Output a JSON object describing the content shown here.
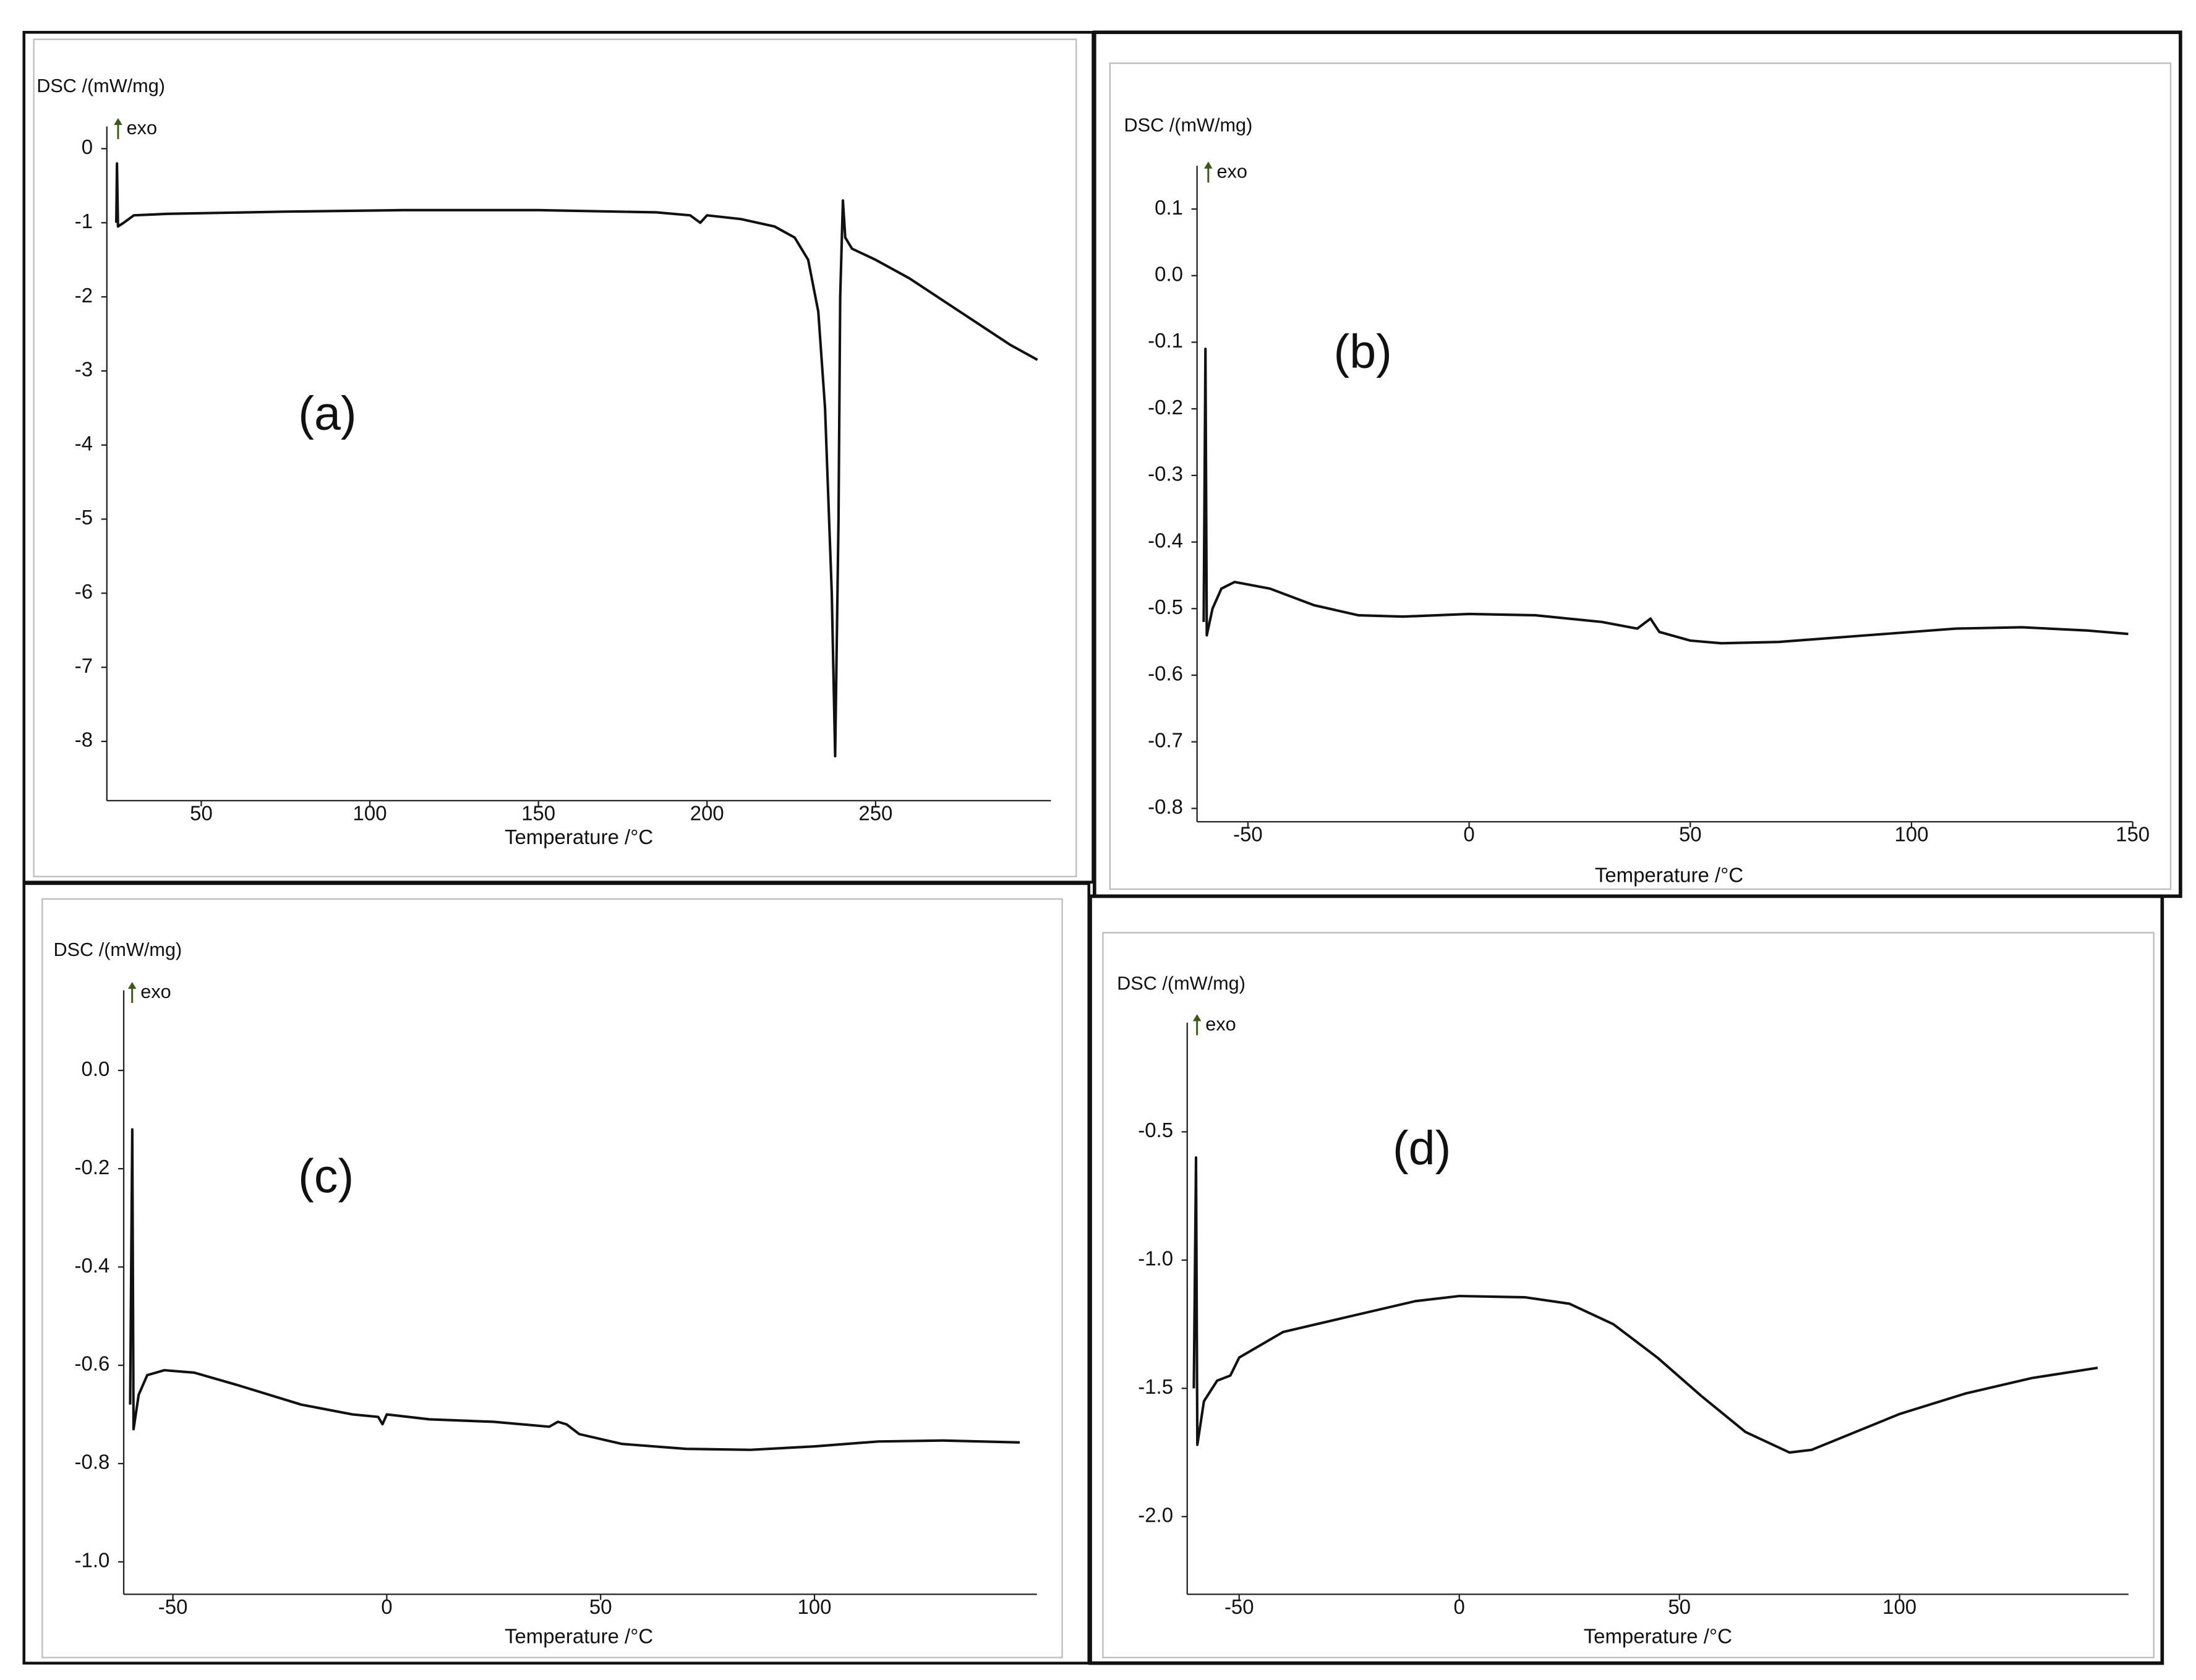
{
  "chart_data": [
    {
      "type": "line",
      "ylabel": "DSC /(mW/mg)",
      "exo_label": "exo",
      "xlabel": "Temperature /°C",
      "panel_label": "(a)",
      "xlim": [
        22,
        302
      ],
      "xticks": [
        50,
        100,
        150,
        200,
        250
      ],
      "ylim": [
        -8.8,
        0.3
      ],
      "yticks": [
        0,
        -1,
        -2,
        -3,
        -4,
        -5,
        -6,
        -7,
        -8
      ],
      "x": [
        24.8,
        25,
        25.3,
        27,
        30,
        40,
        75,
        110,
        150,
        185,
        195,
        198,
        200,
        210,
        220,
        226,
        230,
        233,
        235,
        237,
        238,
        239,
        239.5,
        240.3,
        241,
        243,
        250,
        260,
        270,
        280,
        290,
        298
      ],
      "series": [
        {
          "color": "#111111",
          "values": [
            -1.0,
            -0.2,
            -1.05,
            -1.0,
            -0.9,
            -0.88,
            -0.85,
            -0.83,
            -0.83,
            -0.86,
            -0.9,
            -1.0,
            -0.9,
            -0.95,
            -1.05,
            -1.2,
            -1.5,
            -2.2,
            -3.5,
            -6,
            -8.2,
            -5,
            -2,
            -0.7,
            -1.2,
            -1.35,
            -1.5,
            -1.75,
            -2.05,
            -2.35,
            -2.65,
            -2.85
          ]
        }
      ]
    },
    {
      "type": "line",
      "ylabel": "DSC /(mW/mg)",
      "exo_label": "exo",
      "xlabel": "Temperature /°C",
      "panel_label": "(b)",
      "xlim": [
        -61.5,
        150
      ],
      "xticks": [
        -50,
        0,
        50,
        100,
        150
      ],
      "ylim": [
        -0.82,
        0.165
      ],
      "yticks": [
        0.1,
        {
          "value": 0,
          "label": "0.0"
        },
        -0.1,
        -0.2,
        -0.3,
        -0.4,
        -0.5,
        -0.6,
        -0.7,
        -0.8
      ],
      "x": [
        -60,
        -59.6,
        -59.3,
        -58,
        -56,
        -53,
        -45,
        -35,
        -25,
        -15,
        0,
        15,
        30,
        38,
        41,
        43,
        50,
        57,
        70,
        90,
        110,
        125,
        140,
        149
      ],
      "series": [
        {
          "color": "#111111",
          "values": [
            -0.52,
            -0.11,
            -0.54,
            -0.5,
            -0.47,
            -0.46,
            -0.47,
            -0.495,
            -0.51,
            -0.512,
            -0.508,
            -0.51,
            -0.52,
            -0.53,
            -0.515,
            -0.535,
            -0.548,
            -0.552,
            -0.55,
            -0.54,
            -0.53,
            -0.528,
            -0.533,
            -0.538
          ]
        }
      ]
    },
    {
      "type": "line",
      "ylabel": "DSC /(mW/mg)",
      "exo_label": "exo",
      "xlabel": "Temperature /°C",
      "panel_label": "(c)",
      "xlim": [
        -61.5,
        152
      ],
      "xticks": [
        -50,
        0,
        50,
        100
      ],
      "ylim": [
        -1.066,
        0.163
      ],
      "yticks": [
        {
          "value": 0,
          "label": "0.0"
        },
        -0.2,
        -0.4,
        -0.6,
        -0.8,
        {
          "value": -1,
          "label": "-1.0"
        }
      ],
      "x": [
        -60,
        -59.5,
        -59.2,
        -58,
        -56,
        -52,
        -45,
        -35,
        -20,
        -8,
        -2,
        -1,
        0,
        10,
        25,
        38,
        40,
        42,
        45,
        55,
        70,
        85,
        100,
        115,
        130,
        148
      ],
      "series": [
        {
          "color": "#111111",
          "values": [
            -0.68,
            -0.12,
            -0.73,
            -0.66,
            -0.62,
            -0.61,
            -0.615,
            -0.64,
            -0.68,
            -0.7,
            -0.705,
            -0.72,
            -0.7,
            -0.71,
            -0.715,
            -0.725,
            -0.715,
            -0.72,
            -0.74,
            -0.76,
            -0.77,
            -0.772,
            -0.765,
            -0.755,
            -0.753,
            -0.757
          ]
        }
      ]
    },
    {
      "type": "line",
      "ylabel": "DSC /(mW/mg)",
      "exo_label": "exo",
      "xlabel": "Temperature /°C",
      "panel_label": "(d)",
      "xlim": [
        -61.8,
        152
      ],
      "xticks": [
        -50,
        0,
        50,
        100
      ],
      "ylim": [
        -2.303,
        -0.074
      ],
      "yticks": [
        -0.5,
        {
          "value": -1,
          "label": "-1.0"
        },
        -1.5,
        {
          "value": -2,
          "label": "-2.0"
        }
      ],
      "x": [
        -60.3,
        -59.8,
        -59.5,
        -58,
        -55,
        -52,
        -50,
        -40,
        -25,
        -10,
        0,
        15,
        25,
        35,
        45,
        55,
        65,
        75,
        80,
        90,
        100,
        115,
        130,
        145
      ],
      "series": [
        {
          "color": "#111111",
          "values": [
            -1.5,
            -0.6,
            -1.72,
            -1.55,
            -1.47,
            -1.45,
            -1.38,
            -1.28,
            -1.22,
            -1.16,
            -1.14,
            -1.145,
            -1.17,
            -1.25,
            -1.38,
            -1.53,
            -1.67,
            -1.75,
            -1.74,
            -1.67,
            -1.6,
            -1.52,
            -1.46,
            -1.42
          ]
        }
      ]
    }
  ]
}
